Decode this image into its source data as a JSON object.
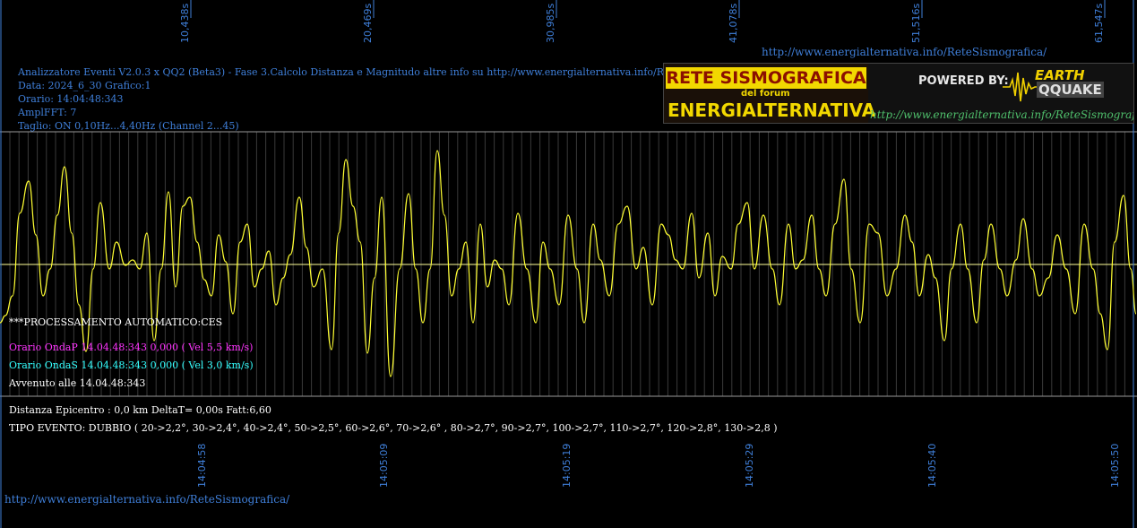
{
  "top_times": [
    "10,438s",
    "20,469s",
    "30,985s",
    "41,078s",
    "51,516s",
    "61,547s"
  ],
  "top_url": "http://www.energialternativa.info/ReteSismografica/",
  "header": {
    "line1": "Analizzatore Eventi V2.0.3 x QQ2 (Beta3) - Fase 3.Calcolo Distanza e Magnitudo altre info su http://www.energialternativa.info/ReteSism",
    "line2": "Data: 2024_6_30 Grafico:1",
    "line3": "Orario: 14:04:48:343",
    "line4": "AmplFFT: 7",
    "line5": "Taglio: ON 0,10Hz...4,40Hz       (Channel 2...45)"
  },
  "logo": {
    "title": "RETE SISMOGRAFICA",
    "subtitle": "del forum",
    "brand": "ENERGIALTERNATIVA",
    "powered": "POWERED BY:",
    "eq_line1": "EARTH",
    "eq_line2": "QQUAKE",
    "url": "http://www.energialternativa.info/ReteSismografica"
  },
  "processing": {
    "title": "***PROCESSAMENTO AUTOMATICO:CES",
    "onda_p": "Orario OndaP 14.04.48:343  0,000 ( Vel 5,5 km/s)",
    "onda_s": "Orario OndaS 14.04.48:343  0,000 ( Vel 3,0 km/s)",
    "avvenuto": "Avvenuto alle 14.04.48:343"
  },
  "info": {
    "distanza": "Distanza Epicentro : 0,0 km DeltaT= 0,00s  Fatt:6,60",
    "tipo": "TIPO EVENTO: DUBBIO ( 20->2,2°, 30->2,4°, 40->2,4°, 50->2,5°, 60->2,6°, 70->2,6° , 80->2,7°, 90->2,7°, 100->2,7°, 110->2,7°, 120->2,8°, 130->2,8 )"
  },
  "bottom_times": [
    "14:04:58",
    "14:05:09",
    "14:05:19",
    "14:05:29",
    "14:05:40",
    "14:05:50"
  ],
  "footer_url": "http://www.energialternativa.info/ReteSismografica/",
  "colors": {
    "background": "#000000",
    "text_blue": "#3f7fd9",
    "wave": "#ffff33",
    "onda_p": "#ff33ff",
    "onda_s": "#33ffff",
    "grid": "#4a4a4a"
  }
}
